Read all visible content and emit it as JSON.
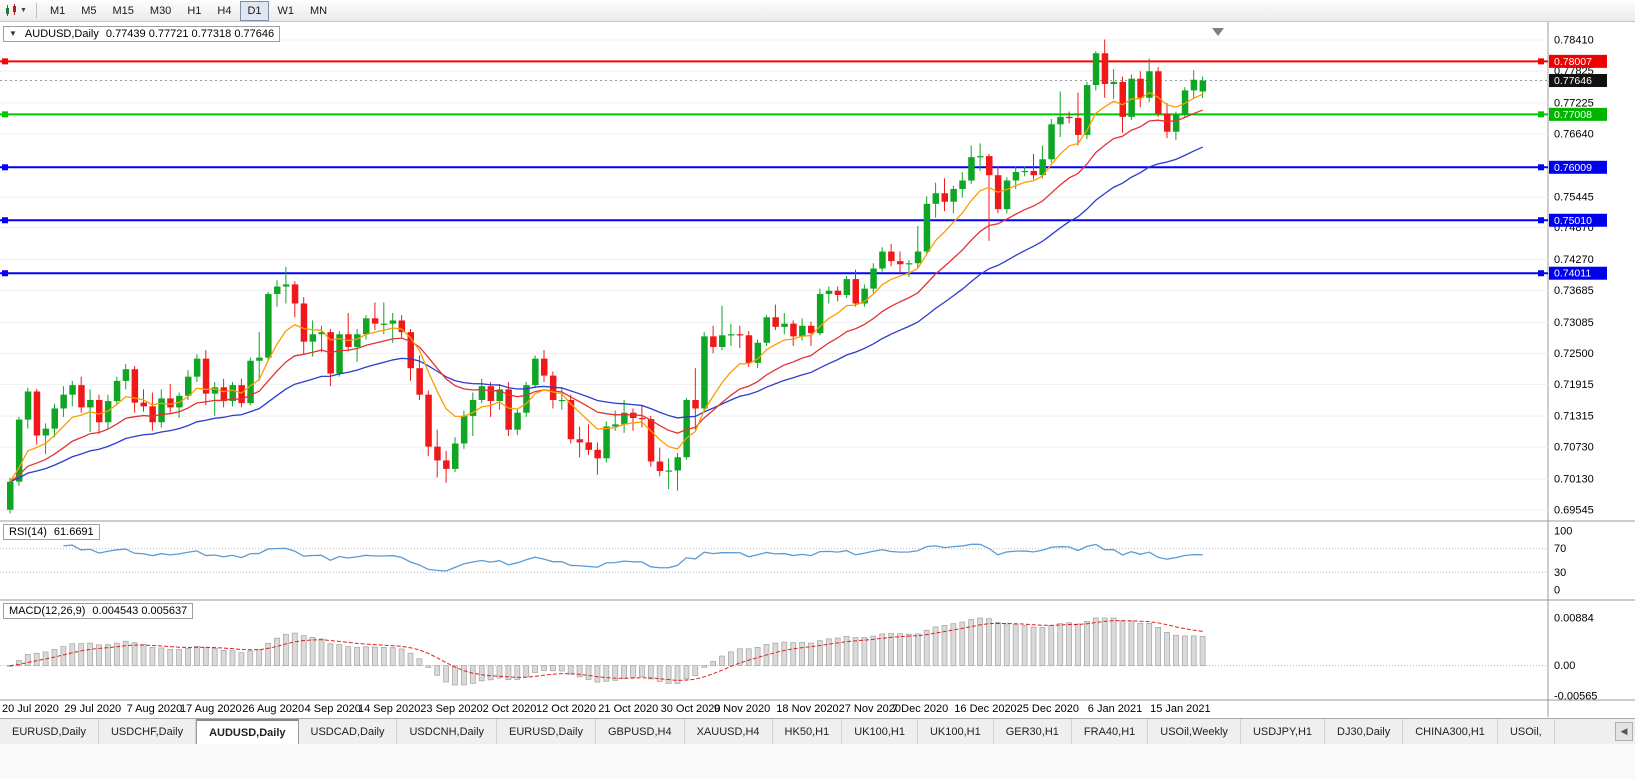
{
  "toolbar": {
    "dropdown_glyph": "▼",
    "timeframes": [
      {
        "label": "M1",
        "active": false
      },
      {
        "label": "M5",
        "active": false
      },
      {
        "label": "M15",
        "active": false
      },
      {
        "label": "M30",
        "active": false
      },
      {
        "label": "H1",
        "active": false
      },
      {
        "label": "H4",
        "active": false
      },
      {
        "label": "D1",
        "active": true
      },
      {
        "label": "W1",
        "active": false
      },
      {
        "label": "MN",
        "active": false
      }
    ]
  },
  "chart": {
    "collapse_glyph": "▼",
    "title": "AUDUSD,Daily",
    "ohlc": "0.77439 0.77721 0.77318 0.77646",
    "current_price": "0.77646",
    "colors": {
      "up": "#0fa626",
      "down": "#f01818",
      "ma_fast": "#ff9b00",
      "ma_mid": "#e03434",
      "ma_slow": "#2c3ccc",
      "grid": "#efefef"
    },
    "axis_labels": [
      "0.78410",
      "0.77825",
      "0.77225",
      "0.76640",
      "0.75445",
      "0.74870",
      "0.74270",
      "0.73685",
      "0.73085",
      "0.72500",
      "0.71915",
      "0.71315",
      "0.70730",
      "0.70130",
      "0.69545"
    ],
    "badges": [
      {
        "text": "0.78007",
        "bg": "#f00000"
      },
      {
        "text": "0.77646",
        "bg": "#111111"
      },
      {
        "text": "0.77008",
        "bg": "#00b400"
      },
      {
        "text": "0.76009",
        "bg": "#0000f0"
      },
      {
        "text": "0.75010",
        "bg": "#0000f0"
      },
      {
        "text": "0.74011",
        "bg": "#0000f0"
      }
    ],
    "levels": [
      {
        "price": 0.78007,
        "color": "#ff0000"
      },
      {
        "price": 0.77008,
        "color": "#00c800"
      },
      {
        "price": 0.76009,
        "color": "#0000ff"
      },
      {
        "price": 0.7501,
        "color": "#0000ff"
      },
      {
        "price": 0.74011,
        "color": "#0000ff"
      }
    ]
  },
  "chart_data": {
    "type": "candlestick",
    "title": "AUDUSD Daily",
    "ylim": [
      0.69545,
      0.7841
    ],
    "x_axis_dates": [
      {
        "label": "20 Jul 2020",
        "i": 0
      },
      {
        "label": "29 Jul 2020",
        "i": 7
      },
      {
        "label": "7 Aug 2020",
        "i": 14
      },
      {
        "label": "17 Aug 2020",
        "i": 20
      },
      {
        "label": "26 Aug 2020",
        "i": 27
      },
      {
        "label": "4 Sep 2020",
        "i": 34
      },
      {
        "label": "14 Sep 2020",
        "i": 40
      },
      {
        "label": "23 Sep 2020",
        "i": 47
      },
      {
        "label": "2 Oct 2020",
        "i": 54
      },
      {
        "label": "12 Oct 2020",
        "i": 60
      },
      {
        "label": "21 Oct 2020",
        "i": 67
      },
      {
        "label": "30 Oct 2020",
        "i": 74
      },
      {
        "label": "9 Nov 2020",
        "i": 80
      },
      {
        "label": "18 Nov 2020",
        "i": 87
      },
      {
        "label": "27 Nov 2020",
        "i": 94
      },
      {
        "label": "7 Dec 2020",
        "i": 100
      },
      {
        "label": "16 Dec 2020",
        "i": 107
      },
      {
        "label": "25 Dec 2020",
        "i": 114
      },
      {
        "label": "6 Jan 2021",
        "i": 122
      },
      {
        "label": "15 Jan 2021",
        "i": 129
      }
    ],
    "candles_ohlc": [
      [
        0.6955,
        0.7015,
        0.6948,
        0.7008
      ],
      [
        0.7008,
        0.713,
        0.7,
        0.7125
      ],
      [
        0.7125,
        0.7185,
        0.7108,
        0.7178
      ],
      [
        0.7178,
        0.7183,
        0.7078,
        0.7095
      ],
      [
        0.7095,
        0.7118,
        0.706,
        0.7108
      ],
      [
        0.7108,
        0.7155,
        0.7092,
        0.7146
      ],
      [
        0.7146,
        0.7188,
        0.713,
        0.7172
      ],
      [
        0.7172,
        0.7198,
        0.715,
        0.719
      ],
      [
        0.719,
        0.7206,
        0.7138,
        0.7148
      ],
      [
        0.7148,
        0.7182,
        0.7102,
        0.7162
      ],
      [
        0.7162,
        0.7172,
        0.7098,
        0.712
      ],
      [
        0.712,
        0.7172,
        0.7108,
        0.716
      ],
      [
        0.716,
        0.7206,
        0.7152,
        0.7198
      ],
      [
        0.7198,
        0.723,
        0.7182,
        0.722
      ],
      [
        0.722,
        0.7226,
        0.7138,
        0.7157
      ],
      [
        0.7157,
        0.7182,
        0.714,
        0.715
      ],
      [
        0.715,
        0.7176,
        0.7104,
        0.712
      ],
      [
        0.712,
        0.7182,
        0.711,
        0.7165
      ],
      [
        0.7165,
        0.7192,
        0.7138,
        0.7148
      ],
      [
        0.7148,
        0.7176,
        0.7128,
        0.717
      ],
      [
        0.717,
        0.7218,
        0.7162,
        0.7206
      ],
      [
        0.7206,
        0.7248,
        0.7196,
        0.724
      ],
      [
        0.724,
        0.7256,
        0.7152,
        0.7174
      ],
      [
        0.7174,
        0.7196,
        0.7132,
        0.7186
      ],
      [
        0.7186,
        0.7202,
        0.7148,
        0.716
      ],
      [
        0.716,
        0.7196,
        0.715,
        0.719
      ],
      [
        0.719,
        0.7202,
        0.7148,
        0.7156
      ],
      [
        0.7156,
        0.7242,
        0.7152,
        0.7236
      ],
      [
        0.7236,
        0.729,
        0.7198,
        0.7242
      ],
      [
        0.7242,
        0.7366,
        0.7236,
        0.7362
      ],
      [
        0.7362,
        0.7388,
        0.7338,
        0.7376
      ],
      [
        0.7376,
        0.7413,
        0.7344,
        0.738
      ],
      [
        0.738,
        0.7386,
        0.7318,
        0.7344
      ],
      [
        0.7344,
        0.7356,
        0.7248,
        0.7272
      ],
      [
        0.7272,
        0.7312,
        0.7244,
        0.7286
      ],
      [
        0.7286,
        0.7302,
        0.7252,
        0.729
      ],
      [
        0.729,
        0.7296,
        0.7188,
        0.7212
      ],
      [
        0.7212,
        0.7292,
        0.7206,
        0.7286
      ],
      [
        0.7286,
        0.7326,
        0.7254,
        0.7262
      ],
      [
        0.7262,
        0.7296,
        0.7234,
        0.7286
      ],
      [
        0.7286,
        0.7322,
        0.7276,
        0.7316
      ],
      [
        0.7316,
        0.7346,
        0.7294,
        0.7306
      ],
      [
        0.7306,
        0.7346,
        0.7286,
        0.7306
      ],
      [
        0.7306,
        0.7326,
        0.727,
        0.7312
      ],
      [
        0.7312,
        0.7322,
        0.728,
        0.729
      ],
      [
        0.729,
        0.7296,
        0.7198,
        0.7222
      ],
      [
        0.7222,
        0.7246,
        0.7162,
        0.7172
      ],
      [
        0.7172,
        0.718,
        0.7056,
        0.7074
      ],
      [
        0.7074,
        0.7106,
        0.7016,
        0.7048
      ],
      [
        0.7048,
        0.7066,
        0.7006,
        0.7032
      ],
      [
        0.7032,
        0.7092,
        0.7026,
        0.708
      ],
      [
        0.708,
        0.7142,
        0.707,
        0.7132
      ],
      [
        0.7132,
        0.7176,
        0.7094,
        0.7162
      ],
      [
        0.7162,
        0.7202,
        0.7156,
        0.7188
      ],
      [
        0.7188,
        0.7196,
        0.713,
        0.716
      ],
      [
        0.716,
        0.7192,
        0.7144,
        0.7182
      ],
      [
        0.7182,
        0.7196,
        0.7094,
        0.7106
      ],
      [
        0.7106,
        0.7146,
        0.7096,
        0.7138
      ],
      [
        0.7138,
        0.7196,
        0.713,
        0.719
      ],
      [
        0.719,
        0.7246,
        0.7184,
        0.724
      ],
      [
        0.724,
        0.7256,
        0.7196,
        0.7208
      ],
      [
        0.7208,
        0.7216,
        0.7146,
        0.7162
      ],
      [
        0.7162,
        0.7186,
        0.7144,
        0.7162
      ],
      [
        0.7162,
        0.7172,
        0.708,
        0.7088
      ],
      [
        0.7088,
        0.7112,
        0.7054,
        0.7082
      ],
      [
        0.7082,
        0.7116,
        0.7058,
        0.7068
      ],
      [
        0.7068,
        0.7082,
        0.7021,
        0.7052
      ],
      [
        0.7052,
        0.7122,
        0.7044,
        0.7112
      ],
      [
        0.7112,
        0.7142,
        0.7104,
        0.7116
      ],
      [
        0.7116,
        0.7162,
        0.71,
        0.7138
      ],
      [
        0.7138,
        0.7146,
        0.7104,
        0.7128
      ],
      [
        0.7128,
        0.7152,
        0.711,
        0.7126
      ],
      [
        0.7126,
        0.7132,
        0.7036,
        0.7046
      ],
      [
        0.7046,
        0.7072,
        0.7018,
        0.7028
      ],
      [
        0.7028,
        0.7052,
        0.6994,
        0.7029
      ],
      [
        0.7029,
        0.7062,
        0.6991,
        0.7054
      ],
      [
        0.7054,
        0.7166,
        0.7049,
        0.7162
      ],
      [
        0.7162,
        0.7222,
        0.7106,
        0.7146
      ],
      [
        0.7146,
        0.729,
        0.7142,
        0.7282
      ],
      [
        0.7282,
        0.7302,
        0.725,
        0.7262
      ],
      [
        0.7262,
        0.734,
        0.7256,
        0.7284
      ],
      [
        0.7284,
        0.7306,
        0.7264,
        0.7286
      ],
      [
        0.7286,
        0.7302,
        0.726,
        0.7284
      ],
      [
        0.7284,
        0.7292,
        0.7224,
        0.7232
      ],
      [
        0.7232,
        0.7276,
        0.7222,
        0.727
      ],
      [
        0.727,
        0.7322,
        0.7264,
        0.7318
      ],
      [
        0.7318,
        0.7342,
        0.7294,
        0.73
      ],
      [
        0.73,
        0.7326,
        0.7286,
        0.7306
      ],
      [
        0.7306,
        0.7312,
        0.7264,
        0.7282
      ],
      [
        0.7282,
        0.7316,
        0.7274,
        0.7302
      ],
      [
        0.7302,
        0.731,
        0.7264,
        0.7288
      ],
      [
        0.7288,
        0.7372,
        0.7284,
        0.7362
      ],
      [
        0.7362,
        0.7376,
        0.7344,
        0.7368
      ],
      [
        0.7368,
        0.7376,
        0.7348,
        0.736
      ],
      [
        0.736,
        0.7396,
        0.7354,
        0.739
      ],
      [
        0.739,
        0.7408,
        0.7338,
        0.7344
      ],
      [
        0.7344,
        0.738,
        0.7338,
        0.7372
      ],
      [
        0.7372,
        0.742,
        0.7364,
        0.741
      ],
      [
        0.741,
        0.745,
        0.7404,
        0.7442
      ],
      [
        0.7442,
        0.7456,
        0.7414,
        0.7424
      ],
      [
        0.7424,
        0.7442,
        0.74,
        0.7418
      ],
      [
        0.7418,
        0.7426,
        0.7394,
        0.742
      ],
      [
        0.742,
        0.749,
        0.741,
        0.7442
      ],
      [
        0.7442,
        0.7546,
        0.7438,
        0.7532
      ],
      [
        0.7532,
        0.7572,
        0.7506,
        0.7552
      ],
      [
        0.7552,
        0.758,
        0.7518,
        0.7536
      ],
      [
        0.7536,
        0.7566,
        0.7514,
        0.756
      ],
      [
        0.756,
        0.7592,
        0.7544,
        0.7576
      ],
      [
        0.7576,
        0.7642,
        0.757,
        0.762
      ],
      [
        0.762,
        0.7646,
        0.7594,
        0.7622
      ],
      [
        0.7622,
        0.7626,
        0.7462,
        0.7586
      ],
      [
        0.7586,
        0.7602,
        0.7514,
        0.7522
      ],
      [
        0.7522,
        0.7582,
        0.7514,
        0.7576
      ],
      [
        0.7576,
        0.7602,
        0.756,
        0.7592
      ],
      [
        0.7592,
        0.7602,
        0.7584,
        0.7594
      ],
      [
        0.7594,
        0.7626,
        0.7578,
        0.7586
      ],
      [
        0.7586,
        0.7642,
        0.758,
        0.7616
      ],
      [
        0.7616,
        0.7692,
        0.761,
        0.7682
      ],
      [
        0.7682,
        0.7744,
        0.7658,
        0.7696
      ],
      [
        0.7696,
        0.7706,
        0.7684,
        0.7694
      ],
      [
        0.7694,
        0.7742,
        0.7642,
        0.7662
      ],
      [
        0.7662,
        0.7762,
        0.7654,
        0.7756
      ],
      [
        0.7756,
        0.782,
        0.7746,
        0.7816
      ],
      [
        0.7816,
        0.7842,
        0.7732,
        0.7758
      ],
      [
        0.7758,
        0.7786,
        0.773,
        0.7762
      ],
      [
        0.7762,
        0.7772,
        0.7666,
        0.7696
      ],
      [
        0.7696,
        0.7776,
        0.769,
        0.7768
      ],
      [
        0.7768,
        0.7782,
        0.7714,
        0.7732
      ],
      [
        0.7732,
        0.7806,
        0.7724,
        0.7782
      ],
      [
        0.7782,
        0.779,
        0.7696,
        0.7702
      ],
      [
        0.7702,
        0.7722,
        0.7656,
        0.7668
      ],
      [
        0.7668,
        0.7706,
        0.7652,
        0.77
      ],
      [
        0.77,
        0.7752,
        0.7694,
        0.7746
      ],
      [
        0.7746,
        0.7784,
        0.773,
        0.7766
      ],
      [
        0.77439,
        0.77721,
        0.77318,
        0.77646
      ]
    ]
  },
  "rsi": {
    "label": "RSI(14)",
    "value": "61.6691",
    "axis_labels": [
      "100",
      "70",
      "30",
      "0"
    ],
    "guide_levels": [
      70,
      30
    ],
    "color": "#5b9cd6"
  },
  "macd": {
    "label": "MACD(12,26,9)",
    "value": "0.004543 0.005637",
    "axis_labels": [
      "0.00884",
      "0.00",
      "-0.00565"
    ],
    "ylim": [
      -0.00565,
      0.00884
    ],
    "histogram_color": "#dadada",
    "histogram_border": "#a6a6a6",
    "signal_color": "#e02020"
  },
  "tabs": {
    "scroll_left": "◀",
    "items": [
      {
        "label": "EURUSD,Daily",
        "active": false
      },
      {
        "label": "USDCHF,Daily",
        "active": false
      },
      {
        "label": "AUDUSD,Daily",
        "active": true
      },
      {
        "label": "USDCAD,Daily",
        "active": false
      },
      {
        "label": "USDCNH,Daily",
        "active": false
      },
      {
        "label": "EURUSD,Daily",
        "active": false
      },
      {
        "label": "GBPUSD,H4",
        "active": false
      },
      {
        "label": "XAUUSD,H4",
        "active": false
      },
      {
        "label": "HK50,H1",
        "active": false
      },
      {
        "label": "UK100,H1",
        "active": false
      },
      {
        "label": "UK100,H1",
        "active": false
      },
      {
        "label": "GER30,H1",
        "active": false
      },
      {
        "label": "FRA40,H1",
        "active": false
      },
      {
        "label": "USOil,Weekly",
        "active": false
      },
      {
        "label": "USDJPY,H1",
        "active": false
      },
      {
        "label": "DJ30,Daily",
        "active": false
      },
      {
        "label": "CHINA300,H1",
        "active": false
      },
      {
        "label": "USOil,",
        "active": false
      }
    ]
  }
}
